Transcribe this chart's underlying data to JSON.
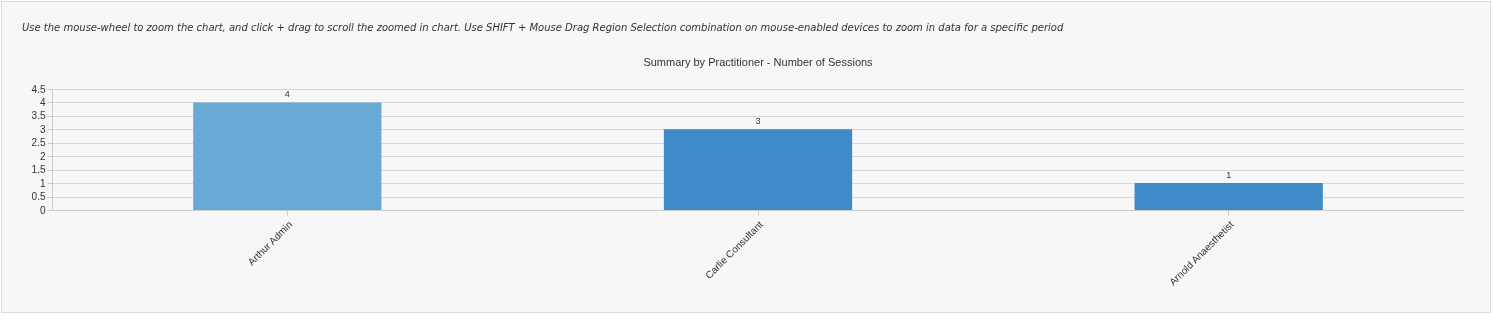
{
  "chart_data": {
    "type": "bar",
    "title": "Summary by Practitioner - Number of Sessions",
    "annotations": [
      "Use the mouse-wheel to zoom the chart, and click + drag to scroll the zoomed in chart. Use SHIFT + Mouse Drag Region Selection combination on mouse-enabled devices to zoom in data for a specific period"
    ],
    "categories": [
      "Arthur Admin",
      "Carlie Consultant",
      "Arnold Anaesthetist"
    ],
    "values": [
      4,
      3,
      1
    ],
    "colors": [
      "#6aa8d6",
      "#3f8ac9",
      "#3f8ac9"
    ],
    "ylim": [
      0,
      4.5
    ],
    "yticks": [
      0,
      0.5,
      1,
      1.5,
      2,
      2.5,
      3,
      3.5,
      4,
      4.5
    ],
    "grid": "y",
    "data_labels": true
  }
}
